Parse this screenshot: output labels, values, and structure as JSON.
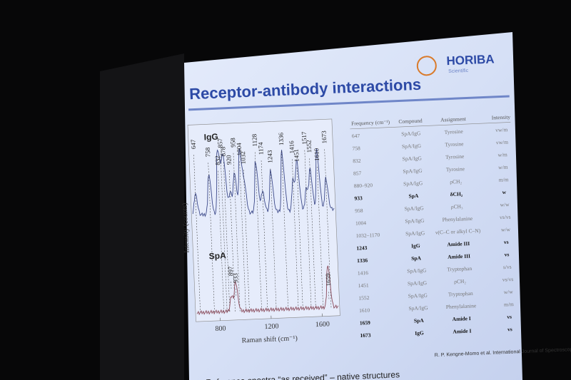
{
  "slide": {
    "title": "Receptor-antibody interactions",
    "logo": {
      "name": "HORIBA",
      "sub": "Scientific"
    },
    "spectra": {
      "y_label": "Intensity (counts)",
      "x_label": "Raman shift (cm⁻¹)",
      "x_ticks": [
        "800",
        "1200",
        "1600"
      ],
      "traces": [
        {
          "name": "IgG",
          "peaks": [
            "647",
            "758",
            "832",
            "857",
            "878",
            "920",
            "958",
            "1004",
            "1032",
            "1128",
            "1174",
            "1243",
            "1336",
            "1416",
            "1451",
            "1517",
            "1552",
            "1610",
            "1673"
          ]
        },
        {
          "name": "SpA",
          "peaks": [
            "897",
            "933",
            "1659"
          ]
        }
      ]
    },
    "table": {
      "header": [
        "Frequency (cm⁻¹)",
        "Compound",
        "Assignment",
        "Intensity"
      ],
      "rows": [
        [
          "647",
          "SpA/IgG",
          "Tyrosine",
          "vw/m"
        ],
        [
          "758",
          "SpA/IgG",
          "Tyrosine",
          "vw/m"
        ],
        [
          "832",
          "SpA/IgG",
          "Tyrosine",
          "w/m"
        ],
        [
          "857",
          "SpA/IgG",
          "Tyrosine",
          "w/m"
        ],
        [
          "880–920",
          "SpA/IgG",
          "ρCH₂",
          "m/m"
        ],
        [
          "933",
          "SpA",
          "δCH₂",
          "w"
        ],
        [
          "958",
          "SpA/IgG",
          "ρCH₃",
          "w/w"
        ],
        [
          "1004",
          "SpA/IgG",
          "Phenylalanine",
          "vs/vs"
        ],
        [
          "1032–1170",
          "SpA/IgG",
          "ν(C–C or alkyl C–N)",
          "w/w"
        ],
        [
          "1243",
          "IgG",
          "Amide III",
          "vs"
        ],
        [
          "1336",
          "SpA",
          "Amide III",
          "vs"
        ],
        [
          "1416",
          "SpA/IgG",
          "Tryptophan",
          "s/vs"
        ],
        [
          "1451",
          "SpA/IgG",
          "ρCH₂",
          "vs/vs"
        ],
        [
          "1552",
          "SpA/IgG",
          "Tryptophan",
          "w/w"
        ],
        [
          "1610",
          "SpA/IgG",
          "Phenylalanine",
          "m/m"
        ],
        [
          "1659",
          "SpA",
          "Amide I",
          "vs"
        ],
        [
          "1673",
          "IgG",
          "Amide I",
          "vs"
        ]
      ],
      "bold_rows": [
        5,
        9,
        10,
        15,
        16
      ]
    },
    "citation": "R. P. Kengne-Momo et al. International Journal of Spectroscopy",
    "footer": "Reference spectra “as received” – native structures"
  }
}
